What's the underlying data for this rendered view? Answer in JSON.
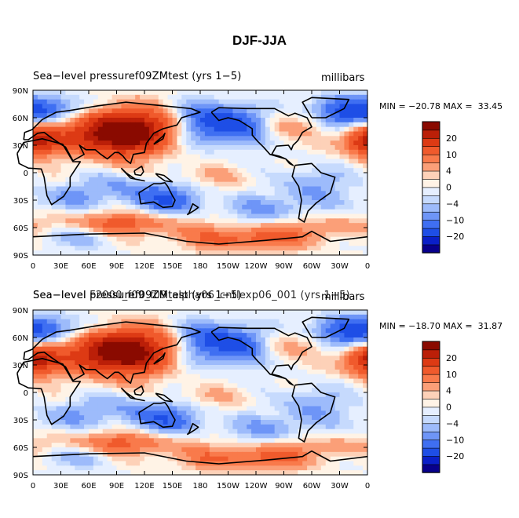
{
  "page_title": "DJF-JJA",
  "colors": {
    "palette": [
      "#08008c",
      "#0a1fc8",
      "#1e4ee6",
      "#3f6ff2",
      "#6e95f7",
      "#9dbbfb",
      "#c6dafd",
      "#e6efff",
      "#fff3e6",
      "#fdd1b8",
      "#fb9f78",
      "#f97a4b",
      "#f05a2c",
      "#dd3a14",
      "#bb1f08",
      "#8a0a00"
    ],
    "levels": [
      -25,
      -20,
      -15,
      -10,
      -7,
      -4,
      -2,
      0,
      2,
      4,
      7,
      10,
      15,
      20,
      25
    ]
  },
  "panels": [
    {
      "title": "Sea−level pressuref09ZMtest (yrs 1−5)",
      "units": "millibars",
      "minmax": "MIN = −20.78 MAX =  33.45",
      "min": -20.78,
      "max": 33.45
    },
    {
      "title": "Sea−level pressuref09ZMtest (yrs 1−5)",
      "title_overlay": "Sea−level F2000_f09_f09_alpha06_cntlexp06_001 (yrs 1−5)",
      "units": "millibars",
      "minmax": "MIN = −18.70 MAX =  31.87",
      "min": -18.7,
      "max": 31.87
    }
  ],
  "chart_data": [
    {
      "type": "heatmap",
      "title": "Sea−level pressuref09ZMtest (yrs 1−5)",
      "units": "millibars",
      "x_ticks": [
        "0",
        "30E",
        "60E",
        "90E",
        "120E",
        "150E",
        "180",
        "150W",
        "120W",
        "90W",
        "60W",
        "30W",
        "0"
      ],
      "y_ticks": [
        "90S",
        "60S",
        "30S",
        "0",
        "30N",
        "60N",
        "90N"
      ],
      "colorbar_labels": [
        "−20",
        "−10",
        "−4",
        "0",
        "4",
        "10",
        "20"
      ],
      "min": -20.78,
      "max": 33.45
    },
    {
      "type": "heatmap",
      "title": "Sea−level F2000_f09_f09_alpha06_cntlexp06_001 (yrs 1−5)",
      "units": "millibars",
      "x_ticks": [
        "0",
        "30E",
        "60E",
        "90E",
        "120E",
        "150E",
        "180",
        "150W",
        "120W",
        "90W",
        "60W",
        "30W",
        "0"
      ],
      "y_ticks": [
        "90S",
        "60S",
        "30S",
        "0",
        "30N",
        "60N",
        "90N"
      ],
      "colorbar_labels": [
        "−20",
        "−10",
        "−4",
        "0",
        "4",
        "10",
        "20"
      ],
      "min": -18.7,
      "max": 31.87
    }
  ]
}
